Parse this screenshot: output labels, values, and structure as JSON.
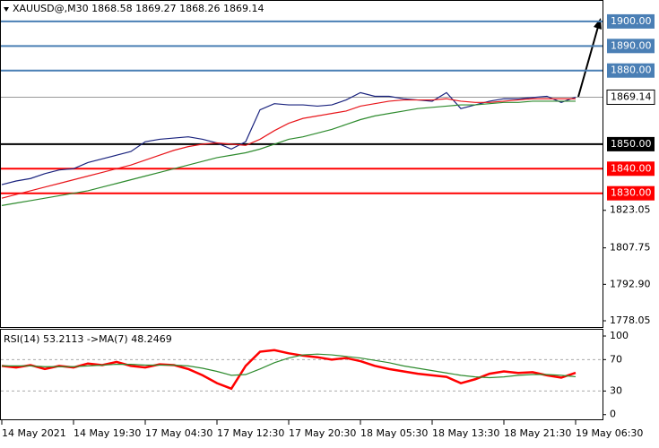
{
  "chart_data": [
    {
      "type": "line",
      "title": "XAUUSD@,M30  1868.58 1869.27 1868.26 1869.14",
      "categories": [
        "14 May 2021",
        null,
        null,
        null,
        null,
        "14 May 19:30",
        null,
        null,
        null,
        null,
        "17 May 04:30",
        null,
        null,
        null,
        null,
        "17 May 12:30",
        null,
        null,
        null,
        null,
        "17 May 20:30",
        null,
        null,
        null,
        null,
        "18 May 05:30",
        null,
        null,
        null,
        null,
        "18 May 13:30",
        null,
        null,
        null,
        null,
        "18 May 21:30",
        null,
        null,
        null,
        null,
        "19 May 06:30"
      ],
      "series": [
        {
          "color": "#1a237e",
          "values": [
            1833.5,
            1835,
            1836,
            1838,
            1839.5,
            1840,
            1842.5,
            1844,
            1845.5,
            1847,
            1851,
            1852,
            1852.5,
            1853,
            1852,
            1850.5,
            1848,
            1851,
            1864,
            1866.5,
            1866,
            1866,
            1865.5,
            1866,
            1868,
            1871,
            1869.5,
            1869.5,
            1868.5,
            1868,
            1867.5,
            1871,
            1864.5,
            1866,
            1867.5,
            1868.5,
            1868.5,
            1869,
            1869.5,
            1867,
            1869.14
          ]
        },
        {
          "color": "#e8161b",
          "values": [
            1828,
            1829.5,
            1831,
            1832.5,
            1834,
            1835.5,
            1837,
            1838.5,
            1840,
            1841.5,
            1843.5,
            1845.5,
            1847.5,
            1849,
            1850,
            1850.5,
            1850,
            1849.5,
            1852,
            1855.5,
            1858.5,
            1860.5,
            1861.5,
            1862.5,
            1863.5,
            1865.5,
            1866.5,
            1867.5,
            1868,
            1868,
            1868,
            1868.5,
            1867.5,
            1867,
            1867,
            1867.5,
            1868,
            1868.5,
            1868.5,
            1868.5,
            1868.5
          ]
        },
        {
          "color": "#2e8b2e",
          "values": [
            1825,
            1826,
            1827,
            1828,
            1829,
            1830,
            1831,
            1832.5,
            1834,
            1835.5,
            1837,
            1838.5,
            1840,
            1841.5,
            1843,
            1844.5,
            1845.5,
            1846.5,
            1848,
            1850,
            1852,
            1853,
            1854.5,
            1856,
            1858,
            1860,
            1861.5,
            1862.5,
            1863.5,
            1864.5,
            1865,
            1865.5,
            1866,
            1866,
            1866.5,
            1867,
            1867,
            1867.5,
            1867.5,
            1867.5,
            1867.5
          ]
        }
      ],
      "ylim": [
        1775.5,
        1908
      ],
      "yticks": [
        1823.05,
        1807.75,
        {
          "value": 1792.9,
          "label": "1792.90"
        },
        1778.05
      ],
      "levels": [
        {
          "value": 1900,
          "label": "1900.00",
          "color": "#4a7fb5"
        },
        {
          "value": 1890,
          "label": "1890.00",
          "color": "#4a7fb5"
        },
        {
          "value": 1880,
          "label": "1880.00",
          "color": "#4a7fb5"
        },
        {
          "value": 1850,
          "label": "1850.00",
          "color": "#000000"
        },
        {
          "value": 1840,
          "label": "1840.00",
          "color": "#ff0000"
        },
        {
          "value": 1830,
          "label": "1830.00",
          "color": "#ff0000"
        }
      ],
      "last_price": 1869.14
    },
    {
      "type": "line",
      "title": "RSI(14) 53.2113  ->MA(7) 48.2469",
      "series": [
        {
          "color": "#ff0000",
          "values": [
            62,
            60,
            63,
            58,
            62,
            60,
            65,
            63,
            67,
            62,
            60,
            64,
            63,
            58,
            50,
            40,
            33,
            62,
            80,
            82,
            78,
            75,
            73,
            70,
            72,
            68,
            62,
            58,
            55,
            52,
            50,
            48,
            40,
            45,
            52,
            55,
            53,
            54,
            50,
            47,
            53.2113
          ]
        },
        {
          "color": "#2e8b2e",
          "values": [
            62,
            62,
            62,
            61,
            61,
            61,
            62,
            63,
            64,
            64,
            63,
            63,
            63,
            62,
            59,
            55,
            50,
            51,
            58,
            66,
            72,
            76,
            77,
            76,
            74,
            72,
            69,
            66,
            62,
            59,
            56,
            53,
            50,
            48,
            47,
            48,
            50,
            51,
            51,
            50,
            48.2469
          ]
        }
      ],
      "ylim": [
        -6,
        108
      ],
      "yticks": [
        100,
        70,
        30,
        0
      ],
      "dashed_levels": [
        70,
        30
      ]
    }
  ]
}
